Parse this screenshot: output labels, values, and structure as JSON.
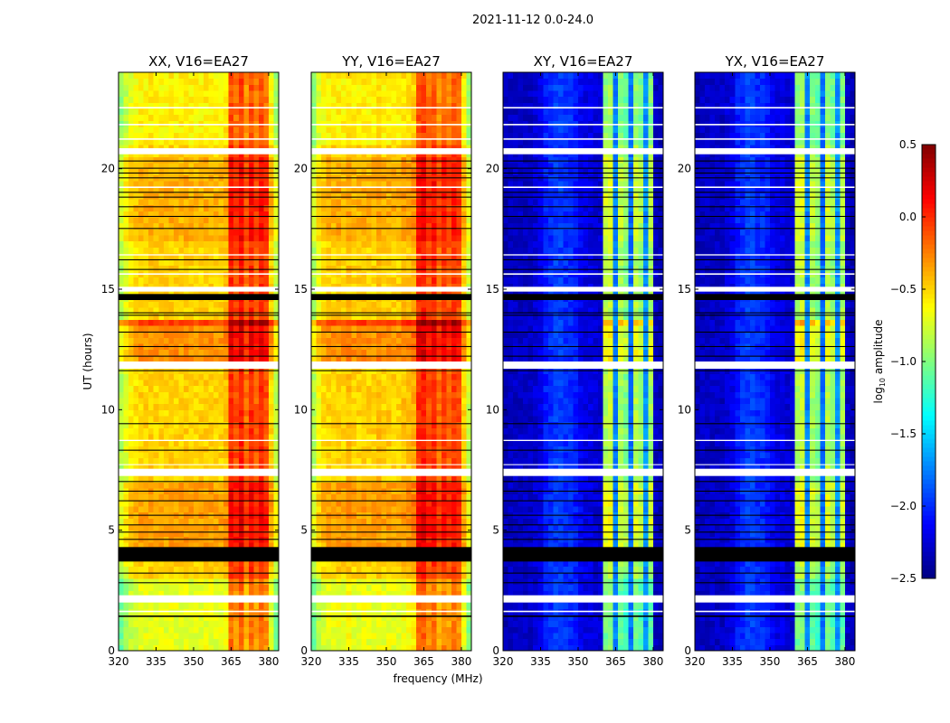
{
  "chart_data": {
    "type": "heatmap",
    "title": "2021-11-12 0.0-24.0",
    "xlabel": "frequency (MHz)",
    "ylabel": "UT (hours)",
    "xlim": [
      320,
      384
    ],
    "ylim": [
      0,
      24
    ],
    "xticks": [
      "320",
      "335",
      "350",
      "365",
      "380"
    ],
    "xtick_values": [
      320,
      335,
      350,
      365,
      380
    ],
    "yticks": [
      "0",
      "5",
      "10",
      "15",
      "20"
    ],
    "ytick_values": [
      0,
      5,
      10,
      15,
      20
    ],
    "freq_bin_start": 320,
    "freq_bin_width": 2,
    "time_bin_width": 0.25,
    "panels": [
      {
        "title": "XX, V16=EA27",
        "column_profile": [
          -0.85,
          -0.7,
          -0.6,
          -0.55,
          -0.5,
          -0.5,
          -0.48,
          -0.5,
          -0.5,
          -0.5,
          -0.48,
          -0.5,
          -0.5,
          -0.48,
          -0.5,
          -0.5,
          -0.5,
          -0.48,
          -0.5,
          -0.5,
          -0.5,
          -0.45,
          0.0,
          -0.1,
          0.05,
          -0.2,
          0.0,
          -0.15,
          0.0,
          -0.1,
          -0.5,
          -0.8
        ]
      },
      {
        "title": "YY, V16=EA27",
        "column_profile": [
          -0.85,
          -0.65,
          -0.55,
          -0.5,
          -0.5,
          -0.48,
          -0.5,
          -0.45,
          -0.5,
          -0.5,
          -0.48,
          -0.5,
          -0.5,
          -0.45,
          -0.5,
          -0.48,
          -0.5,
          -0.5,
          -0.45,
          -0.45,
          -0.4,
          0.0,
          0.05,
          -0.1,
          0.0,
          -0.2,
          -0.05,
          -0.15,
          -0.05,
          -0.1,
          -0.5,
          -0.8
        ]
      },
      {
        "title": "XY, V16=EA27",
        "column_profile": [
          -2.35,
          -2.3,
          -2.3,
          -2.3,
          -2.3,
          -2.3,
          -2.25,
          -2.2,
          -2.05,
          -2.0,
          -1.95,
          -1.95,
          -2.0,
          -2.0,
          -2.05,
          -2.15,
          -2.2,
          -2.2,
          -2.25,
          -2.25,
          -0.85,
          -0.8,
          -1.75,
          -0.9,
          -1.0,
          -1.8,
          -0.85,
          -0.95,
          -1.7,
          -0.9,
          -2.3,
          -2.35
        ]
      },
      {
        "title": "YX, V16=EA27",
        "column_profile": [
          -2.35,
          -2.3,
          -2.3,
          -2.3,
          -2.3,
          -2.3,
          -2.25,
          -2.2,
          -2.05,
          -2.0,
          -1.95,
          -1.95,
          -2.0,
          -2.0,
          -2.05,
          -2.15,
          -2.2,
          -2.2,
          -2.25,
          -2.25,
          -0.85,
          -0.8,
          -1.75,
          -0.9,
          -1.0,
          -1.8,
          -0.85,
          -0.95,
          -1.7,
          -0.9,
          -2.3,
          -2.35
        ]
      }
    ],
    "time_offsets": [
      [
        0,
        3,
        -0.2
      ],
      [
        4.3,
        7,
        0.15
      ],
      [
        12,
        13.4,
        0.2
      ],
      [
        13.4,
        13.8,
        0.45
      ],
      [
        16.4,
        16.6,
        0.2
      ],
      [
        17,
        20.4,
        0.1
      ],
      [
        20.9,
        24,
        -0.1
      ]
    ],
    "flags_white": [
      [
        20.6,
        20.85
      ],
      [
        14.9,
        15.1
      ],
      [
        11.7,
        12.0
      ],
      [
        7.25,
        7.55
      ],
      [
        2.0,
        2.3
      ],
      [
        22.5,
        22.56
      ],
      [
        21.8,
        21.86
      ],
      [
        21.2,
        21.26
      ],
      [
        19.2,
        19.26
      ],
      [
        16.4,
        16.45
      ],
      [
        15.6,
        15.66
      ],
      [
        8.7,
        8.75
      ],
      [
        7.7,
        7.74
      ],
      [
        1.6,
        1.66
      ]
    ],
    "flags_black": [
      [
        14.55,
        14.8
      ],
      [
        3.7,
        4.3
      ],
      [
        20.3,
        20.34
      ],
      [
        20.0,
        20.04
      ],
      [
        19.8,
        19.84
      ],
      [
        19.6,
        19.64
      ],
      [
        19.0,
        19.04
      ],
      [
        18.8,
        18.84
      ],
      [
        18.4,
        18.44
      ],
      [
        18.0,
        18.04
      ],
      [
        17.5,
        17.54
      ],
      [
        16.2,
        16.24
      ],
      [
        15.8,
        15.84
      ],
      [
        14.0,
        14.04
      ],
      [
        13.9,
        13.94
      ],
      [
        13.2,
        13.24
      ],
      [
        12.6,
        12.64
      ],
      [
        12.2,
        12.24
      ],
      [
        11.6,
        11.64
      ],
      [
        9.4,
        9.44
      ],
      [
        8.3,
        8.34
      ],
      [
        7.0,
        7.04
      ],
      [
        6.6,
        6.64
      ],
      [
        6.2,
        6.24
      ],
      [
        5.6,
        5.64
      ],
      [
        5.2,
        5.24
      ],
      [
        4.9,
        4.94
      ],
      [
        4.6,
        4.64
      ],
      [
        3.2,
        3.24
      ],
      [
        2.8,
        2.84
      ],
      [
        1.4,
        1.46
      ]
    ],
    "colorbar": {
      "label_main": "log",
      "label_sub": "10",
      "label_rest": " amplitude",
      "colormap": "jet",
      "range": [
        -2.5,
        0.5
      ],
      "tick_labels": [
        "0.5",
        "0.0",
        "−0.5",
        "−1.0",
        "−1.5",
        "−2.0",
        "−2.5"
      ],
      "tick_values": [
        0.5,
        0.0,
        -0.5,
        -1.0,
        -1.5,
        -2.0,
        -2.5
      ]
    }
  }
}
